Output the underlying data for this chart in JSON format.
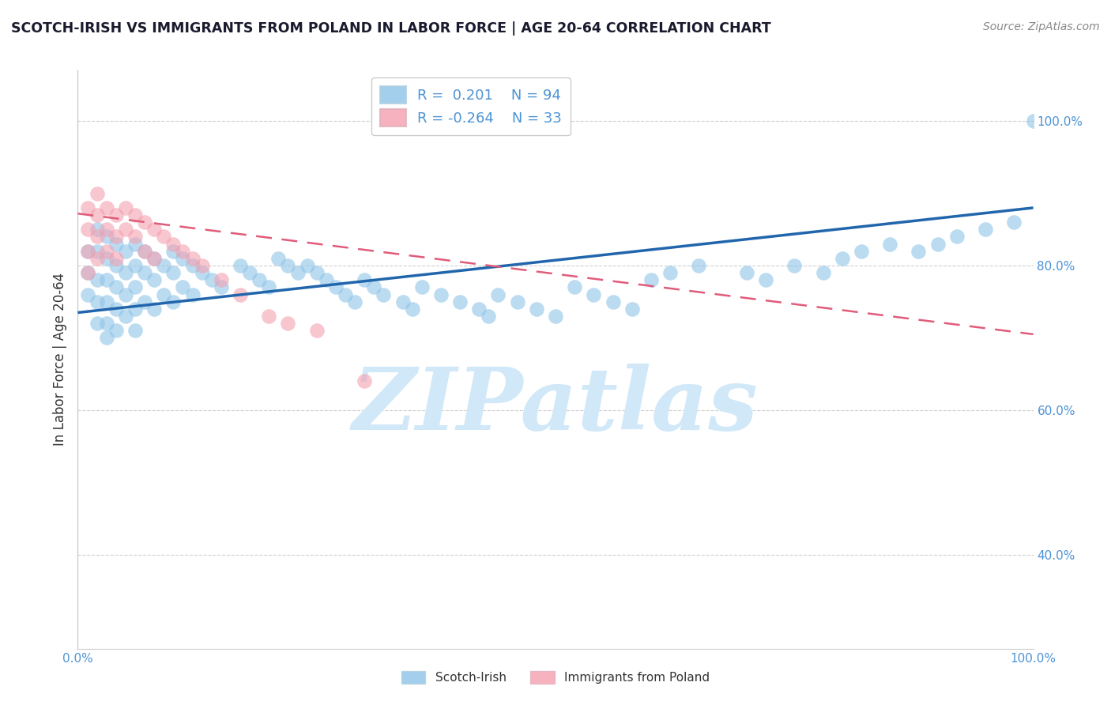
{
  "title": "SCOTCH-IRISH VS IMMIGRANTS FROM POLAND IN LABOR FORCE | AGE 20-64 CORRELATION CHART",
  "source": "Source: ZipAtlas.com",
  "ylabel": "In Labor Force | Age 20-64",
  "legend_label1": "Scotch-Irish",
  "legend_label2": "Immigrants from Poland",
  "legend_r1": "R =  0.201",
  "legend_n1": "N = 94",
  "legend_r2": "R = -0.264",
  "legend_n2": "N = 33",
  "color_blue": "#8ec4e8",
  "color_pink": "#f4a0b0",
  "color_blue_line": "#2166ac",
  "color_pink_line": "#e05c7a",
  "watermark": "ZIPatlas",
  "watermark_color": "#d0e8f8",
  "xlim": [
    0.0,
    1.0
  ],
  "ylim": [
    0.27,
    1.07
  ],
  "yticks": [
    0.4,
    0.6,
    0.8,
    1.0
  ],
  "ytick_labels": [
    "40.0%",
    "60.0%",
    "80.0%",
    "100.0%"
  ],
  "xticks": [
    0.0,
    0.1,
    0.2,
    0.3,
    0.4,
    0.5,
    0.6,
    0.7,
    0.8,
    0.9,
    1.0
  ],
  "xtick_labels_show": {
    "0.0": "0.0%",
    "1.0": "100.0%"
  },
  "blue_x": [
    0.01,
    0.01,
    0.01,
    0.02,
    0.02,
    0.02,
    0.02,
    0.02,
    0.03,
    0.03,
    0.03,
    0.03,
    0.03,
    0.03,
    0.04,
    0.04,
    0.04,
    0.04,
    0.04,
    0.05,
    0.05,
    0.05,
    0.05,
    0.06,
    0.06,
    0.06,
    0.06,
    0.06,
    0.07,
    0.07,
    0.07,
    0.08,
    0.08,
    0.08,
    0.09,
    0.09,
    0.1,
    0.1,
    0.1,
    0.11,
    0.11,
    0.12,
    0.12,
    0.13,
    0.14,
    0.15,
    0.17,
    0.18,
    0.19,
    0.2,
    0.21,
    0.22,
    0.23,
    0.24,
    0.25,
    0.26,
    0.27,
    0.28,
    0.29,
    0.3,
    0.31,
    0.32,
    0.34,
    0.35,
    0.36,
    0.38,
    0.4,
    0.42,
    0.43,
    0.44,
    0.46,
    0.48,
    0.5,
    0.52,
    0.54,
    0.56,
    0.58,
    0.6,
    0.62,
    0.65,
    0.7,
    0.72,
    0.75,
    0.78,
    0.8,
    0.82,
    0.85,
    0.88,
    0.9,
    0.92,
    0.95,
    0.98,
    1.0
  ],
  "blue_y": [
    0.82,
    0.79,
    0.76,
    0.85,
    0.82,
    0.78,
    0.75,
    0.72,
    0.84,
    0.81,
    0.78,
    0.75,
    0.72,
    0.7,
    0.83,
    0.8,
    0.77,
    0.74,
    0.71,
    0.82,
    0.79,
    0.76,
    0.73,
    0.83,
    0.8,
    0.77,
    0.74,
    0.71,
    0.82,
    0.79,
    0.75,
    0.81,
    0.78,
    0.74,
    0.8,
    0.76,
    0.82,
    0.79,
    0.75,
    0.81,
    0.77,
    0.8,
    0.76,
    0.79,
    0.78,
    0.77,
    0.8,
    0.79,
    0.78,
    0.77,
    0.81,
    0.8,
    0.79,
    0.8,
    0.79,
    0.78,
    0.77,
    0.76,
    0.75,
    0.78,
    0.77,
    0.76,
    0.75,
    0.74,
    0.77,
    0.76,
    0.75,
    0.74,
    0.73,
    0.76,
    0.75,
    0.74,
    0.73,
    0.77,
    0.76,
    0.75,
    0.74,
    0.78,
    0.79,
    0.8,
    0.79,
    0.78,
    0.8,
    0.79,
    0.81,
    0.82,
    0.83,
    0.82,
    0.83,
    0.84,
    0.85,
    0.86,
    1.0
  ],
  "pink_x": [
    0.01,
    0.01,
    0.01,
    0.01,
    0.02,
    0.02,
    0.02,
    0.02,
    0.03,
    0.03,
    0.03,
    0.04,
    0.04,
    0.04,
    0.05,
    0.05,
    0.06,
    0.06,
    0.07,
    0.07,
    0.08,
    0.08,
    0.09,
    0.1,
    0.11,
    0.12,
    0.13,
    0.15,
    0.17,
    0.2,
    0.22,
    0.25,
    0.3
  ],
  "pink_y": [
    0.88,
    0.85,
    0.82,
    0.79,
    0.9,
    0.87,
    0.84,
    0.81,
    0.88,
    0.85,
    0.82,
    0.87,
    0.84,
    0.81,
    0.88,
    0.85,
    0.87,
    0.84,
    0.86,
    0.82,
    0.85,
    0.81,
    0.84,
    0.83,
    0.82,
    0.81,
    0.8,
    0.78,
    0.76,
    0.73,
    0.72,
    0.71,
    0.64
  ],
  "blue_trend_x": [
    0.0,
    1.0
  ],
  "blue_trend_y": [
    0.735,
    0.88
  ],
  "pink_trend_x": [
    0.0,
    1.0
  ],
  "pink_trend_y": [
    0.872,
    0.705
  ],
  "grid_color": "#d0d0d0",
  "background_color": "#ffffff",
  "title_color": "#1a1a2e",
  "axis_color": "#333333",
  "tick_color": "#4d94d5",
  "title_fontsize": 12.5,
  "source_fontsize": 10,
  "legend_fontsize": 13,
  "axis_label_fontsize": 12
}
